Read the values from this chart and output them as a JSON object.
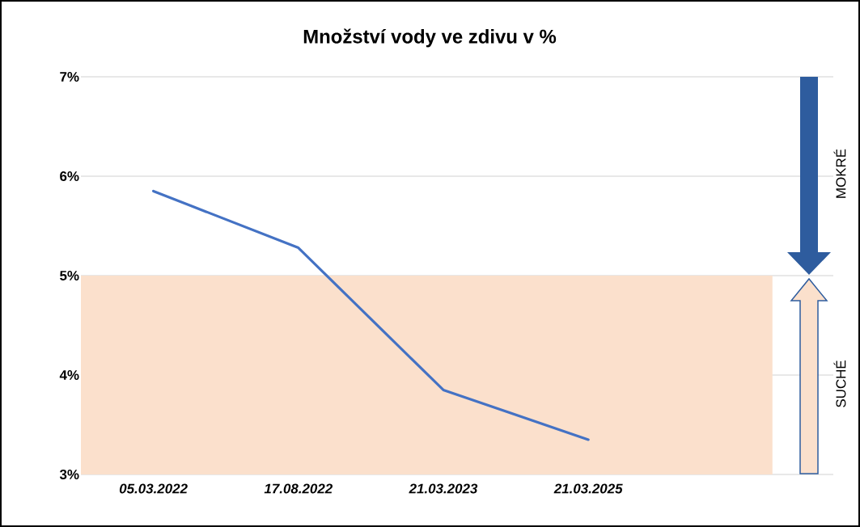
{
  "chart_data": {
    "type": "line",
    "title": "Množství vody ve zdivu v %",
    "categories": [
      "05.03.2022",
      "17.08.2022",
      "21.03.2023",
      "21.03.2025"
    ],
    "series": [
      {
        "color": "#4472c4",
        "values": [
          5.85,
          5.28,
          3.85,
          3.35
        ]
      }
    ],
    "ylim": [
      3,
      7
    ],
    "yticks": [
      {
        "value": 3,
        "label": "3%"
      },
      {
        "value": 4,
        "label": "4%"
      },
      {
        "value": 5,
        "label": "5%"
      },
      {
        "value": 6,
        "label": "6%"
      },
      {
        "value": 7,
        "label": "7%"
      }
    ],
    "grid": "y",
    "bands": [
      {
        "axis": "y",
        "from": 3,
        "to": 5,
        "color": "#fbe0cc"
      }
    ],
    "annotations": [
      "MOKRÉ",
      "SUCHÉ"
    ]
  }
}
